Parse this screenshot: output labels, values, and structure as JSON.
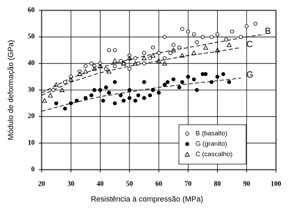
{
  "chart_data": {
    "type": "scatter",
    "x_label": "Resistência à compressão (MPa)",
    "y_label": "Módulo de deformação (GPa)",
    "xlim": [
      20,
      100
    ],
    "xticks": [
      20,
      30,
      40,
      50,
      60,
      70,
      80,
      90,
      100
    ],
    "ylim": [
      0,
      60
    ],
    "yticks": [
      0,
      10,
      20,
      30,
      40,
      50,
      60
    ],
    "grid": true,
    "legend": "lower right",
    "series": [
      {
        "name": "B (basalto)",
        "marker": "open-circle",
        "color": "#000000",
        "x": [
          24,
          28,
          30,
          33,
          35,
          37,
          38,
          40,
          42,
          43,
          45,
          45,
          47,
          48,
          50,
          50,
          52,
          53,
          55,
          55,
          57,
          58,
          60,
          62,
          62,
          64,
          65,
          67,
          68,
          70,
          72,
          73,
          75,
          78,
          80,
          83,
          85,
          88,
          90,
          93
        ],
        "values": [
          30,
          33,
          35,
          37,
          39,
          40,
          39,
          40,
          38,
          45,
          45,
          39,
          41,
          40,
          43,
          38,
          42,
          40,
          44,
          40,
          42,
          46,
          44,
          50,
          42,
          44,
          47,
          46,
          53,
          52,
          51,
          48,
          50,
          50,
          51,
          49,
          52,
          50,
          54,
          55
        ]
      },
      {
        "name": "G (granito)",
        "marker": "filled-circle",
        "color": "#000000",
        "x": [
          25,
          28,
          30,
          32,
          35,
          37,
          38,
          40,
          41,
          42,
          43,
          45,
          45,
          47,
          48,
          50,
          50,
          52,
          53,
          55,
          55,
          57,
          58,
          60,
          62,
          63,
          65,
          67,
          68,
          70,
          72,
          73,
          75,
          76,
          78,
          80,
          82,
          84
        ],
        "values": [
          25,
          23,
          25,
          26,
          27,
          28,
          30,
          30,
          26,
          31,
          29,
          25,
          33,
          28,
          26,
          27,
          30,
          26,
          28,
          27,
          33,
          28,
          30,
          29,
          32,
          33,
          34,
          31,
          33,
          35,
          34,
          30,
          36,
          36,
          33,
          35,
          36,
          33
        ]
      },
      {
        "name": "C (cascalho)",
        "marker": "triangle",
        "color": "#000000",
        "x": [
          21,
          23,
          25,
          27,
          30,
          33,
          35,
          38,
          40,
          43,
          45,
          48,
          50,
          52,
          55,
          58,
          60,
          62,
          65,
          68,
          72,
          76,
          80,
          84
        ],
        "values": [
          26,
          28,
          32,
          30,
          34,
          36,
          37,
          38,
          39,
          37,
          41,
          40,
          42,
          40,
          42,
          43,
          41,
          40,
          45,
          43,
          44,
          46,
          45,
          47
        ]
      }
    ],
    "trend_lines": [
      {
        "label": "B",
        "x": [
          20,
          30,
          40,
          50,
          60,
          70,
          80,
          90,
          96
        ],
        "values": [
          29,
          34.5,
          38.5,
          41.5,
          44,
          46,
          48,
          50,
          51
        ]
      },
      {
        "label": "C",
        "x": [
          20,
          30,
          40,
          50,
          60,
          70,
          80,
          88
        ],
        "values": [
          28,
          33,
          36.5,
          39,
          41,
          43,
          44.5,
          46
        ]
      },
      {
        "label": "G",
        "x": [
          20,
          30,
          40,
          50,
          60,
          70,
          80,
          88
        ],
        "values": [
          22,
          25,
          27.5,
          29.3,
          31,
          32.3,
          33.5,
          34.5
        ]
      }
    ]
  }
}
